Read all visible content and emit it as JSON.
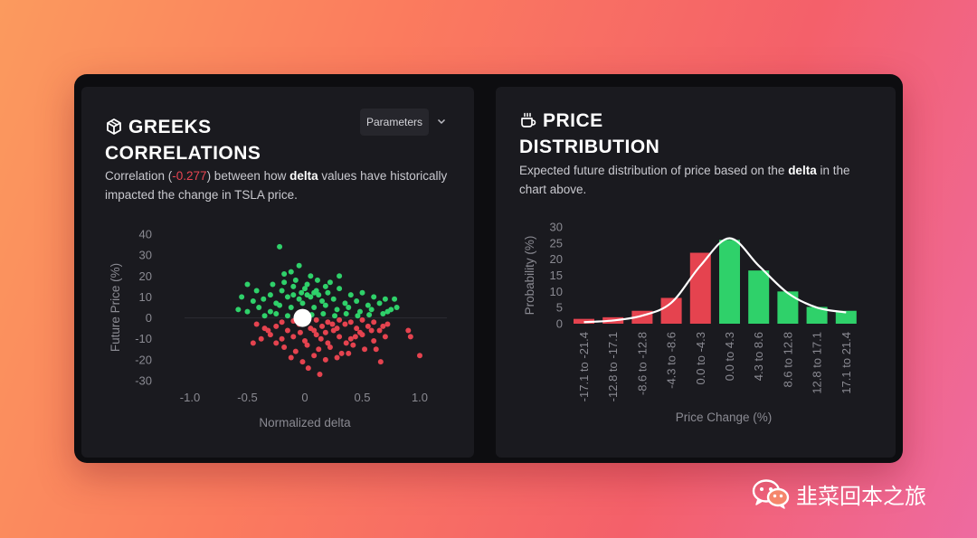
{
  "left_panel": {
    "title_line1": "GREEKS",
    "title_line2": "CORRELATIONS",
    "icon": "cube-icon",
    "parameters_label": "Parameters",
    "desc_prefix": "Correlation (",
    "desc_corr": "-0.277",
    "desc_mid": ") between how ",
    "desc_bold": "delta",
    "desc_suffix": " values have historically impacted the change in TSLA price."
  },
  "right_panel": {
    "title_line1": "PRICE",
    "title_line2": "DISTRIBUTION",
    "icon": "coffee-cup-icon",
    "desc_prefix": "Expected future distribution of price based on the ",
    "desc_bold": "delta",
    "desc_suffix": " in the chart above."
  },
  "watermark": {
    "icon": "wechat-icon",
    "text": "韭菜回本之旅"
  },
  "colors": {
    "positive": "#2fd16a",
    "negative": "#e5434f",
    "card": "#1a1a1f",
    "accent_text": "#e84552"
  },
  "chart_data": [
    {
      "type": "scatter",
      "xlabel": "Normalized delta",
      "ylabel": "Future Price (%)",
      "xlim": [
        -1.0,
        1.0
      ],
      "ylim": [
        -30,
        40
      ],
      "x_ticks": [
        "-1.0",
        "-0.5",
        "0",
        "0.5",
        "1.0"
      ],
      "y_ticks": [
        "40",
        "30",
        "20",
        "10",
        "0",
        "-10",
        "-20",
        "-30"
      ],
      "current_point": {
        "x": -0.02,
        "y": 0
      },
      "series": [
        {
          "color": "#2fd16a",
          "points": [
            [
              -0.22,
              34
            ],
            [
              -0.05,
              25
            ],
            [
              0.3,
              20
            ],
            [
              -0.12,
              22
            ],
            [
              -0.18,
              21
            ],
            [
              0.22,
              17
            ],
            [
              0.11,
              18
            ],
            [
              0.02,
              16
            ],
            [
              -0.5,
              16
            ],
            [
              -0.42,
              13
            ],
            [
              -0.3,
              11
            ],
            [
              -0.2,
              13
            ],
            [
              -0.1,
              15
            ],
            [
              0.0,
              14
            ],
            [
              0.1,
              13
            ],
            [
              0.2,
              12
            ],
            [
              0.3,
              14
            ],
            [
              0.4,
              11
            ],
            [
              0.5,
              12
            ],
            [
              0.6,
              10
            ],
            [
              0.7,
              9
            ],
            [
              0.78,
              9
            ],
            [
              -0.55,
              10
            ],
            [
              -0.45,
              8
            ],
            [
              -0.36,
              9
            ],
            [
              -0.25,
              7
            ],
            [
              -0.15,
              10
            ],
            [
              -0.05,
              9
            ],
            [
              0.05,
              10
            ],
            [
              0.15,
              8
            ],
            [
              0.25,
              9
            ],
            [
              0.35,
              7
            ],
            [
              0.45,
              8
            ],
            [
              0.55,
              6
            ],
            [
              0.65,
              7
            ],
            [
              0.75,
              4
            ],
            [
              0.8,
              5
            ],
            [
              -0.58,
              4
            ],
            [
              -0.5,
              3
            ],
            [
              -0.4,
              5
            ],
            [
              -0.3,
              3
            ],
            [
              -0.22,
              6
            ],
            [
              -0.12,
              5
            ],
            [
              -0.02,
              7
            ],
            [
              0.08,
              5
            ],
            [
              0.18,
              6
            ],
            [
              0.28,
              4
            ],
            [
              0.38,
              5
            ],
            [
              0.48,
              3
            ],
            [
              0.58,
              4
            ],
            [
              0.68,
              2
            ],
            [
              0.72,
              3
            ],
            [
              -0.35,
              1
            ],
            [
              -0.25,
              2
            ],
            [
              -0.15,
              1
            ],
            [
              -0.05,
              2
            ],
            [
              0.06,
              1.5
            ],
            [
              0.16,
              2
            ],
            [
              0.26,
              1
            ],
            [
              0.36,
              2
            ],
            [
              0.46,
              1
            ],
            [
              0.56,
              1.5
            ],
            [
              -0.08,
              18
            ],
            [
              0.05,
              20
            ],
            [
              -0.28,
              16
            ],
            [
              0.18,
              15
            ],
            [
              -0.03,
              12
            ],
            [
              0.12,
              11
            ],
            [
              -0.18,
              17
            ],
            [
              0.08,
              12
            ],
            [
              -0.1,
              11
            ],
            [
              0.02,
              11
            ]
          ]
        },
        {
          "color": "#e5434f",
          "points": [
            [
              -0.42,
              -3
            ],
            [
              -0.35,
              -5
            ],
            [
              -0.25,
              -4
            ],
            [
              -0.15,
              -6
            ],
            [
              -0.05,
              -3
            ],
            [
              0.05,
              -5
            ],
            [
              0.15,
              -4
            ],
            [
              0.25,
              -6
            ],
            [
              0.35,
              -3
            ],
            [
              0.45,
              -5
            ],
            [
              0.55,
              -4
            ],
            [
              0.65,
              -6
            ],
            [
              0.72,
              -3
            ],
            [
              -0.3,
              -8
            ],
            [
              -0.2,
              -10
            ],
            [
              -0.1,
              -9
            ],
            [
              0.0,
              -11
            ],
            [
              0.1,
              -8
            ],
            [
              0.2,
              -12
            ],
            [
              0.3,
              -9
            ],
            [
              0.4,
              -10
            ],
            [
              0.5,
              -8
            ],
            [
              0.6,
              -11
            ],
            [
              0.7,
              -9
            ],
            [
              -0.38,
              -10
            ],
            [
              -0.45,
              -12
            ],
            [
              -0.18,
              -14
            ],
            [
              -0.08,
              -16
            ],
            [
              0.02,
              -13
            ],
            [
              0.12,
              -15
            ],
            [
              0.22,
              -14
            ],
            [
              0.32,
              -17
            ],
            [
              0.42,
              -13
            ],
            [
              0.52,
              -15
            ],
            [
              -0.12,
              -19
            ],
            [
              -0.02,
              -21
            ],
            [
              0.08,
              -18
            ],
            [
              0.18,
              -20
            ],
            [
              0.28,
              -19
            ],
            [
              0.38,
              -17
            ],
            [
              0.03,
              -24
            ],
            [
              0.13,
              -27
            ],
            [
              -0.2,
              -2
            ],
            [
              -0.1,
              -1.5
            ],
            [
              0.0,
              -2
            ],
            [
              0.1,
              -1
            ],
            [
              0.2,
              -2
            ],
            [
              0.3,
              -1
            ],
            [
              0.4,
              -2
            ],
            [
              0.5,
              -1
            ],
            [
              0.6,
              -2
            ],
            [
              -0.25,
              -12
            ],
            [
              0.08,
              -6
            ],
            [
              0.18,
              -7
            ],
            [
              0.28,
              -5
            ],
            [
              0.48,
              -7
            ],
            [
              0.62,
              -15
            ],
            [
              0.68,
              -4
            ],
            [
              0.9,
              -6
            ],
            [
              0.92,
              -9
            ],
            [
              1.0,
              -18
            ],
            [
              0.66,
              -21
            ],
            [
              -0.04,
              -7
            ],
            [
              0.14,
              -10
            ],
            [
              0.36,
              -12
            ],
            [
              0.24,
              -3
            ],
            [
              -0.32,
              -6
            ],
            [
              0.58,
              -6
            ],
            [
              0.44,
              -9
            ]
          ]
        }
      ]
    },
    {
      "type": "bar",
      "xlabel": "Price Change (%)",
      "ylabel": "Probability (%)",
      "ylim": [
        0,
        30
      ],
      "y_ticks": [
        "30",
        "25",
        "20",
        "15",
        "10",
        "5",
        "0"
      ],
      "categories": [
        "-17.1 to -21.4",
        "-12.8 to -17.1",
        "-8.6 to -12.8",
        "-4.3 to -8.6",
        "0.0 to -4.3",
        "0.0 to 4.3",
        "4.3 to 8.6",
        "8.6 to 12.8",
        "12.8 to 17.1",
        "17.1 to 21.4"
      ],
      "values": [
        1.5,
        2,
        4,
        8,
        22,
        26,
        16.5,
        10,
        5.2,
        4
      ],
      "bar_colors": [
        "#e5434f",
        "#e5434f",
        "#e5434f",
        "#e5434f",
        "#e5434f",
        "#2fd16a",
        "#2fd16a",
        "#2fd16a",
        "#2fd16a",
        "#2fd16a"
      ],
      "density_curve": [
        0.5,
        1.0,
        2.5,
        6.5,
        18,
        26.5,
        18,
        9.5,
        5,
        3.5
      ]
    }
  ]
}
